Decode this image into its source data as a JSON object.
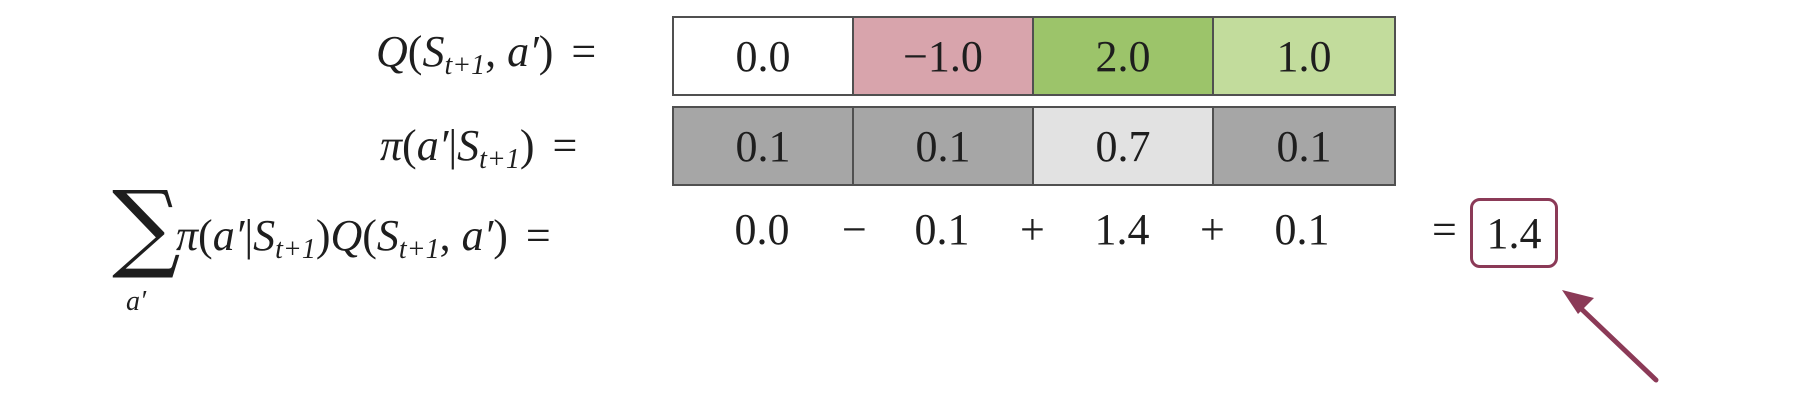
{
  "rows": {
    "q": {
      "label_parts": {
        "func": "Q",
        "open": "(",
        "state": "S",
        "sub": "t+1",
        "comma": ",",
        "action": "a′",
        "close": ")",
        "eq": "="
      },
      "cells": [
        {
          "text": "0.0",
          "bg": "#ffffff"
        },
        {
          "text": "−1.0",
          "bg": "#d8a4ac"
        },
        {
          "text": "2.0",
          "bg": "#9cc46a"
        },
        {
          "text": "1.0",
          "bg": "#c2dc9c"
        }
      ]
    },
    "pi": {
      "label_parts": {
        "func": "π",
        "open": "(",
        "action": "a′",
        "bar": "|",
        "state": "S",
        "sub": "t+1",
        "close": ")",
        "eq": "="
      },
      "cells": [
        {
          "text": "0.1",
          "bg": "#a6a6a6"
        },
        {
          "text": "0.1",
          "bg": "#a6a6a6"
        },
        {
          "text": "0.7",
          "bg": "#e2e2e2"
        },
        {
          "text": "0.1",
          "bg": "#a6a6a6"
        }
      ]
    },
    "sum": {
      "sigma": "∑",
      "sigma_sub": "a′",
      "label_parts": {
        "func1": "π",
        "open1": "(",
        "action1": "a′",
        "bar": "|",
        "state1": "S",
        "sub1": "t+1",
        "close1": ")",
        "func2": "Q",
        "open2": "(",
        "state2": "S",
        "sub2": "t+1",
        "comma": ",",
        "action2": "a′",
        "close2": ")",
        "eq": "="
      },
      "terms": [
        "0.0",
        "0.1",
        "1.4",
        "0.1"
      ],
      "ops": [
        "−",
        "+",
        "+"
      ],
      "result_eq": "=",
      "result": "1.4"
    }
  },
  "colors": {
    "accent": "#8b3a57",
    "border": "#505050"
  },
  "icons": {
    "arrow": "arrow-pointer-icon"
  }
}
